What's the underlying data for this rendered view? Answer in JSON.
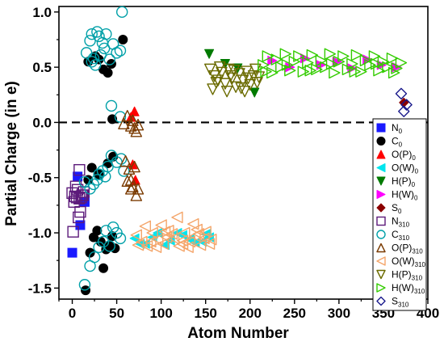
{
  "chart_data": {
    "type": "scatter",
    "title": "",
    "xlabel": "Atom Number",
    "ylabel": "Partial Charge (in e)",
    "xlim": [
      -15,
      400
    ],
    "ylim": [
      -1.6,
      1.05
    ],
    "xticks": [
      0,
      50,
      100,
      150,
      200,
      250,
      300,
      350,
      400
    ],
    "yticks": [
      -1.5,
      -1.0,
      -0.5,
      0.0,
      0.5,
      1.0
    ],
    "ytick_labels": [
      "-1.5",
      "-1.0",
      "-0.5",
      "0.0",
      "0.5",
      "1.0"
    ],
    "reference_line": {
      "y": 0.0,
      "style": "dashed"
    },
    "grid": false,
    "legend_position": "right",
    "series": [
      {
        "name": "N",
        "sub": "0",
        "marker": "square",
        "filled": true,
        "color": "#1a1aff",
        "points": [
          [
            0,
            -1.18
          ],
          [
            6,
            -0.49
          ],
          [
            9,
            -0.93
          ],
          [
            14,
            -0.72
          ]
        ]
      },
      {
        "name": "C",
        "sub": "0",
        "marker": "circle",
        "filled": true,
        "color": "#000000",
        "points": [
          [
            15,
            -1.52
          ],
          [
            18,
            -0.52
          ],
          [
            20,
            -1.18
          ],
          [
            24,
            -1.04
          ],
          [
            28,
            -0.98
          ],
          [
            32,
            -1.08
          ],
          [
            35,
            -1.32
          ],
          [
            38,
            -1.15
          ],
          [
            42,
            -1.11
          ],
          [
            45,
            -1.03
          ],
          [
            48,
            -1.14
          ],
          [
            22,
            -0.41
          ],
          [
            30,
            -0.47
          ],
          [
            40,
            -0.37
          ],
          [
            46,
            -0.31
          ],
          [
            18,
            0.55
          ],
          [
            26,
            0.6
          ],
          [
            30,
            0.57
          ],
          [
            35,
            0.48
          ],
          [
            40,
            0.45
          ],
          [
            44,
            0.53
          ],
          [
            45,
            0.03
          ],
          [
            57,
            0.75
          ]
        ]
      },
      {
        "name": "O(P)",
        "sub": "0",
        "marker": "triangle-up",
        "filled": true,
        "color": "#ff0000",
        "points": [
          [
            66,
            0.05
          ],
          [
            70,
            0.1
          ],
          [
            68,
            -0.38
          ],
          [
            71,
            -0.52
          ]
        ]
      },
      {
        "name": "O(W)",
        "sub": "0",
        "marker": "triangle-left",
        "filled": true,
        "color": "#00e5ee",
        "points": [
          [
            70,
            -1.05
          ],
          [
            82,
            -1.1
          ],
          [
            96,
            -1.0
          ],
          [
            110,
            -1.07
          ],
          [
            124,
            -1.02
          ],
          [
            138,
            -1.09
          ],
          [
            150,
            -1.01
          ],
          [
            76,
            -1.1
          ],
          [
            90,
            -1.04
          ],
          [
            104,
            -1.11
          ],
          [
            118,
            -1.0
          ],
          [
            132,
            -1.06
          ],
          [
            146,
            -1.08
          ],
          [
            154,
            -1.04
          ]
        ]
      },
      {
        "name": "H(P)",
        "sub": "0",
        "marker": "triangle-down",
        "filled": true,
        "color": "#007a00",
        "points": [
          [
            154,
            0.62
          ],
          [
            172,
            0.53
          ],
          [
            186,
            0.49
          ],
          [
            205,
            0.27
          ]
        ]
      },
      {
        "name": "H(W)",
        "sub": "0",
        "marker": "triangle-right",
        "filled": true,
        "color": "#ff00ff",
        "points": [
          [
            225,
            0.56
          ],
          [
            245,
            0.5
          ],
          [
            262,
            0.58
          ],
          [
            280,
            0.52
          ],
          [
            298,
            0.55
          ],
          [
            315,
            0.49
          ],
          [
            332,
            0.57
          ],
          [
            348,
            0.52
          ],
          [
            365,
            0.5
          ]
        ]
      },
      {
        "name": "S",
        "sub": "0",
        "marker": "diamond",
        "filled": true,
        "color": "#8b0000",
        "points": [
          [
            373,
            0.18
          ]
        ]
      },
      {
        "name": "N",
        "sub": "310",
        "marker": "square",
        "filled": false,
        "color": "#5c1a7a",
        "points": [
          [
            0,
            -0.64
          ],
          [
            1,
            -0.99
          ],
          [
            2,
            -0.72
          ],
          [
            3,
            -0.67
          ],
          [
            4,
            -0.58
          ],
          [
            5,
            -0.68
          ],
          [
            6,
            -0.61
          ],
          [
            7,
            -0.86
          ],
          [
            8,
            -0.69
          ],
          [
            9,
            -0.81
          ],
          [
            10,
            -0.68
          ],
          [
            11,
            -0.66
          ],
          [
            8,
            -0.43
          ],
          [
            12,
            -0.66
          ],
          [
            13,
            -0.63
          ]
        ]
      },
      {
        "name": "C",
        "sub": "310",
        "marker": "circle",
        "filled": false,
        "color": "#00a0a8",
        "points": [
          [
            14,
            -1.47
          ],
          [
            20,
            -1.3
          ],
          [
            25,
            -1.22
          ],
          [
            30,
            -1.13
          ],
          [
            35,
            -1.08
          ],
          [
            38,
            -0.98
          ],
          [
            42,
            -1.12
          ],
          [
            46,
            -0.95
          ],
          [
            50,
            -1.0
          ],
          [
            54,
            -1.05
          ],
          [
            14,
            -0.54
          ],
          [
            20,
            -0.6
          ],
          [
            24,
            -0.56
          ],
          [
            28,
            -0.52
          ],
          [
            30,
            -0.47
          ],
          [
            34,
            -0.44
          ],
          [
            37,
            -0.49
          ],
          [
            40,
            -0.4
          ],
          [
            44,
            -0.3
          ],
          [
            50,
            -0.36
          ],
          [
            55,
            -0.33
          ],
          [
            58,
            -0.44
          ],
          [
            44,
            0.15
          ],
          [
            54,
            0.05
          ],
          [
            16,
            0.63
          ],
          [
            20,
            0.74
          ],
          [
            22,
            0.8
          ],
          [
            24,
            0.58
          ],
          [
            28,
            0.82
          ],
          [
            30,
            0.78
          ],
          [
            32,
            0.61
          ],
          [
            34,
            0.72
          ],
          [
            36,
            0.67
          ],
          [
            38,
            0.8
          ],
          [
            42,
            0.57
          ],
          [
            46,
            0.71
          ],
          [
            50,
            0.63
          ],
          [
            54,
            0.65
          ],
          [
            56,
            1.0
          ],
          [
            22,
            0.55
          ],
          [
            26,
            0.52
          ]
        ]
      },
      {
        "name": "O(P)",
        "sub": "310",
        "marker": "triangle-up",
        "filled": false,
        "color": "#7a3a00",
        "points": [
          [
            58,
            -0.01
          ],
          [
            62,
            0.06
          ],
          [
            66,
            -0.03
          ],
          [
            68,
            0.02
          ],
          [
            70,
            -0.05
          ],
          [
            72,
            -0.08
          ],
          [
            74,
            -0.02
          ],
          [
            60,
            -0.35
          ],
          [
            64,
            -0.42
          ],
          [
            66,
            -0.52
          ],
          [
            68,
            -0.58
          ],
          [
            70,
            -0.4
          ],
          [
            72,
            -0.66
          ],
          [
            74,
            -0.6
          ],
          [
            62,
            -0.53
          ],
          [
            66,
            -0.6
          ]
        ]
      },
      {
        "name": "O(W)",
        "sub": "310",
        "marker": "triangle-left",
        "filled": false,
        "color": "#f4a56a",
        "points": [
          [
            72,
            -1.02
          ],
          [
            78,
            -1.08
          ],
          [
            84,
            -1.12
          ],
          [
            90,
            -1.0
          ],
          [
            96,
            -1.06
          ],
          [
            102,
            -1.1
          ],
          [
            108,
            -0.98
          ],
          [
            114,
            -1.05
          ],
          [
            120,
            -1.12
          ],
          [
            126,
            -1.0
          ],
          [
            132,
            -1.08
          ],
          [
            138,
            -1.03
          ],
          [
            144,
            -1.11
          ],
          [
            150,
            -0.99
          ],
          [
            156,
            -1.06
          ],
          [
            82,
            -0.94
          ],
          [
            100,
            -0.93
          ],
          [
            118,
            -0.86
          ],
          [
            136,
            -0.92
          ],
          [
            74,
            -1.11
          ],
          [
            88,
            -1.08
          ],
          [
            106,
            -1.04
          ],
          [
            124,
            -1.07
          ],
          [
            142,
            -1.01
          ],
          [
            154,
            -1.1
          ],
          [
            94,
            -1.13
          ],
          [
            112,
            -1.01
          ],
          [
            130,
            -1.13
          ],
          [
            148,
            -1.05
          ],
          [
            104,
            -0.99
          ],
          [
            124,
            -1.1
          ],
          [
            140,
            -0.97
          ]
        ]
      },
      {
        "name": "H(P)",
        "sub": "310",
        "marker": "triangle-down",
        "filled": false,
        "color": "#6b6b00",
        "points": [
          [
            155,
            0.48
          ],
          [
            160,
            0.42
          ],
          [
            164,
            0.38
          ],
          [
            168,
            0.45
          ],
          [
            172,
            0.35
          ],
          [
            176,
            0.48
          ],
          [
            180,
            0.4
          ],
          [
            184,
            0.32
          ],
          [
            188,
            0.44
          ],
          [
            192,
            0.38
          ],
          [
            196,
            0.46
          ],
          [
            200,
            0.34
          ],
          [
            204,
            0.42
          ],
          [
            208,
            0.36
          ],
          [
            158,
            0.3
          ],
          [
            166,
            0.5
          ],
          [
            174,
            0.28
          ],
          [
            182,
            0.47
          ],
          [
            190,
            0.31
          ],
          [
            198,
            0.4
          ],
          [
            206,
            0.48
          ],
          [
            162,
            0.36
          ],
          [
            178,
            0.42
          ],
          [
            194,
            0.28
          ],
          [
            210,
            0.41
          ]
        ]
      },
      {
        "name": "H(W)",
        "sub": "310",
        "marker": "triangle-right",
        "filled": false,
        "color": "#33cc00",
        "points": [
          [
            215,
            0.52
          ],
          [
            220,
            0.6
          ],
          [
            225,
            0.45
          ],
          [
            230,
            0.57
          ],
          [
            235,
            0.5
          ],
          [
            240,
            0.62
          ],
          [
            245,
            0.47
          ],
          [
            250,
            0.55
          ],
          [
            255,
            0.6
          ],
          [
            260,
            0.46
          ],
          [
            265,
            0.54
          ],
          [
            270,
            0.61
          ],
          [
            275,
            0.48
          ],
          [
            280,
            0.56
          ],
          [
            285,
            0.5
          ],
          [
            290,
            0.62
          ],
          [
            295,
            0.45
          ],
          [
            300,
            0.55
          ],
          [
            305,
            0.6
          ],
          [
            310,
            0.48
          ],
          [
            315,
            0.53
          ],
          [
            320,
            0.61
          ],
          [
            325,
            0.46
          ],
          [
            330,
            0.56
          ],
          [
            335,
            0.52
          ],
          [
            340,
            0.6
          ],
          [
            345,
            0.47
          ],
          [
            350,
            0.55
          ],
          [
            355,
            0.5
          ],
          [
            360,
            0.58
          ],
          [
            365,
            0.49
          ],
          [
            370,
            0.54
          ],
          [
            218,
            0.46
          ],
          [
            242,
            0.52
          ],
          [
            268,
            0.47
          ],
          [
            292,
            0.53
          ],
          [
            318,
            0.46
          ],
          [
            342,
            0.53
          ],
          [
            362,
            0.45
          ]
        ]
      },
      {
        "name": "S",
        "sub": "310",
        "marker": "diamond",
        "filled": false,
        "color": "#1a1a8c",
        "points": [
          [
            370,
            0.26
          ],
          [
            373,
            0.1
          ],
          [
            376,
            0.16
          ]
        ]
      }
    ]
  }
}
